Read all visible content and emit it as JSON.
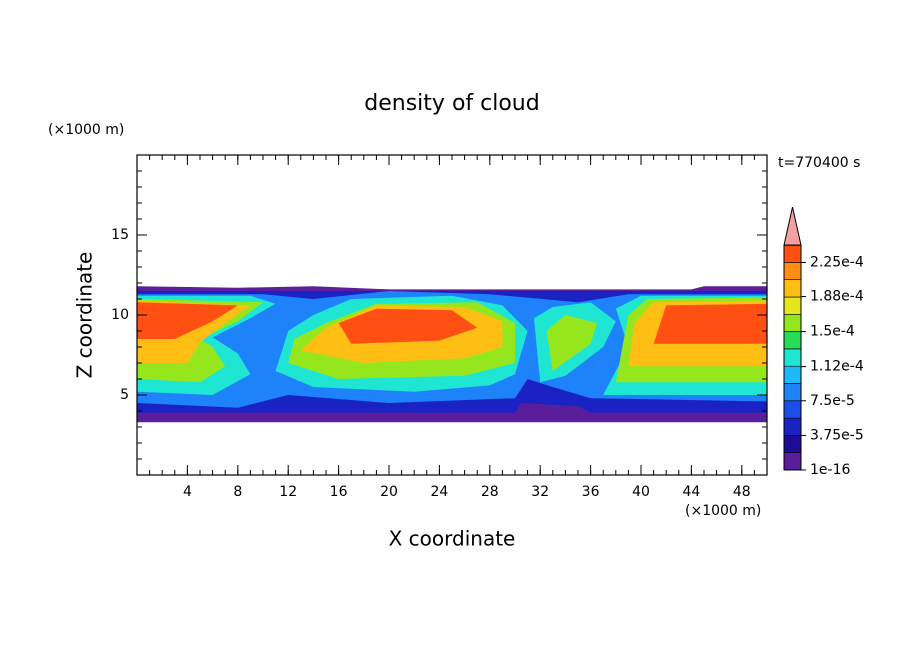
{
  "chart_data": {
    "type": "contour",
    "title": "density of cloud",
    "x_label": "X coordinate",
    "y_label": "Z coordinate",
    "x_unit": "(×1000 m)",
    "y_unit": "(×1000 m)",
    "annotation": "t=770400 s",
    "xlim": [
      0,
      50
    ],
    "xticks": [
      4,
      8,
      12,
      16,
      20,
      24,
      28,
      32,
      36,
      40,
      44,
      48
    ],
    "ylim": [
      0,
      20
    ],
    "yticks": [
      5,
      10,
      15
    ],
    "colorbar": {
      "clim": [
        0,
        0.00024375
      ],
      "extend": "max",
      "extend_color": "#f4a0a0",
      "colors": [
        "#5a1e9c",
        "#1c0c96",
        "#1a22c4",
        "#1e4ee8",
        "#1e82fa",
        "#1eb8f8",
        "#1ee6d2",
        "#28dc5a",
        "#96e61e",
        "#e6e61e",
        "#ffbe14",
        "#ff8c14",
        "#ff5014"
      ],
      "ticks": [
        {
          "value": 1e-16,
          "label": "1e-16"
        },
        {
          "value": 3.75e-05,
          "label": "3.75e-5"
        },
        {
          "value": 7.5e-05,
          "label": "7.5e-5"
        },
        {
          "value": 0.000112,
          "label": "1.12e-4"
        },
        {
          "value": 0.00015,
          "label": "1.5e-4"
        },
        {
          "value": 0.000188,
          "label": "1.88e-4"
        },
        {
          "value": 0.000225,
          "label": "2.25e-4"
        }
      ]
    }
  }
}
